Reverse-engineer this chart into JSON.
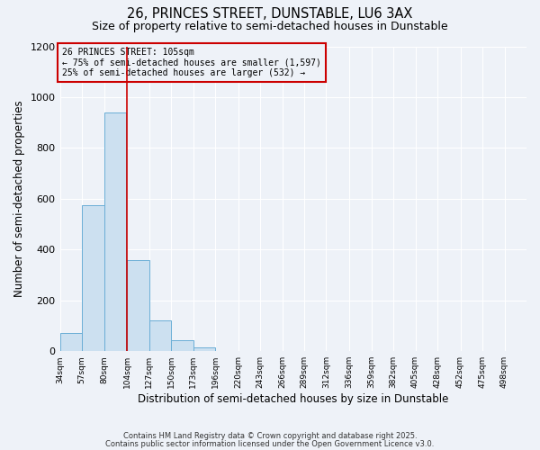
{
  "title": "26, PRINCES STREET, DUNSTABLE, LU6 3AX",
  "subtitle": "Size of property relative to semi-detached houses in Dunstable",
  "xlabel": "Distribution of semi-detached houses by size in Dunstable",
  "ylabel": "Number of semi-detached properties",
  "bar_values": [
    70,
    575,
    940,
    360,
    120,
    45,
    15,
    0,
    0,
    0,
    0,
    0,
    0,
    0,
    0,
    0,
    0,
    0,
    0,
    0
  ],
  "bin_labels": [
    "34sqm",
    "57sqm",
    "80sqm",
    "104sqm",
    "127sqm",
    "150sqm",
    "173sqm",
    "196sqm",
    "220sqm",
    "243sqm",
    "266sqm",
    "289sqm",
    "312sqm",
    "336sqm",
    "359sqm",
    "382sqm",
    "405sqm",
    "428sqm",
    "452sqm",
    "475sqm",
    "498sqm"
  ],
  "bin_edges": [
    34,
    57,
    80,
    104,
    127,
    150,
    173,
    196,
    220,
    243,
    266,
    289,
    312,
    336,
    359,
    382,
    405,
    428,
    452,
    475,
    498
  ],
  "bar_color": "#cce0f0",
  "bar_edge_color": "#6baed6",
  "vline_x": 104,
  "vline_color": "#cc0000",
  "annotation_line1": "26 PRINCES STREET: 105sqm",
  "annotation_line2": "← 75% of semi-detached houses are smaller (1,597)",
  "annotation_line3": "25% of semi-detached houses are larger (532) →",
  "annotation_box_color": "#cc0000",
  "ylim": [
    0,
    1200
  ],
  "yticks": [
    0,
    200,
    400,
    600,
    800,
    1000,
    1200
  ],
  "background_color": "#eef2f8",
  "grid_color": "#ffffff",
  "footer1": "Contains HM Land Registry data © Crown copyright and database right 2025.",
  "footer2": "Contains public sector information licensed under the Open Government Licence v3.0."
}
